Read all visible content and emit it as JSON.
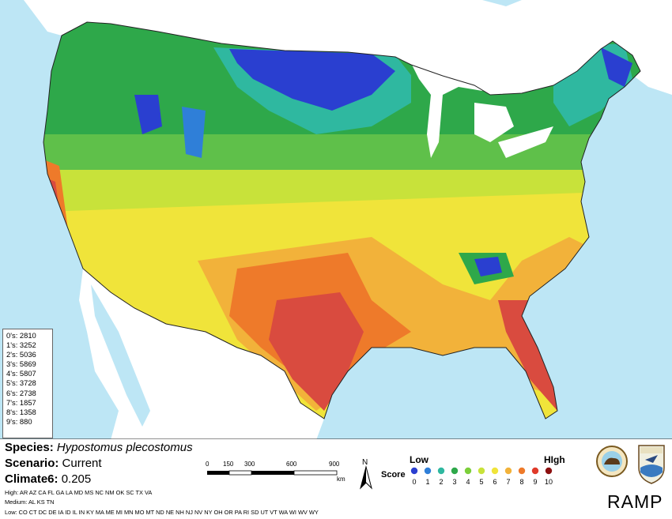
{
  "counts": [
    "0's: 2810",
    "1's: 3252",
    "2's: 5036",
    "3's: 5869",
    "4's: 5807",
    "5's: 3728",
    "6's: 2738",
    "7's: 1857",
    "8's: 1358",
    "9's: 880"
  ],
  "species": {
    "label": "Species:",
    "value": "Hypostomus plecostomus"
  },
  "scenario": {
    "label": "Scenario:",
    "value": "Current"
  },
  "climate": {
    "label": "Climate6:",
    "value": "0.205"
  },
  "high_states": "High:  AR AZ CA FL GA LA MD MS NC NM OK SC TX VA",
  "medium_states": "Medium:  AL KS TN",
  "low_states": "Low:  CO CT DC DE IA ID IL IN KY MA ME MI MN MO MT ND NE NH NJ NV NY OH OR PA RI SD UT VT WA WI WV WY",
  "scale_bar": {
    "ticks": [
      "0",
      "150",
      "300",
      "600",
      "900"
    ],
    "unit": "km"
  },
  "north_label": "N",
  "legend": {
    "score_label": "Score",
    "low_label": "Low",
    "high_label": "HIgh",
    "values": [
      "0",
      "1",
      "2",
      "3",
      "4",
      "5",
      "6",
      "7",
      "8",
      "9",
      "10"
    ],
    "colors": [
      "#2a3fd0",
      "#2f7fd8",
      "#2fb8a0",
      "#2ea84a",
      "#7ccf3a",
      "#c8e23a",
      "#f0e43a",
      "#f2b23a",
      "#ee7a2a",
      "#e03a2a",
      "#8c1010"
    ]
  },
  "brand": "RAMP",
  "colors": {
    "water": "#bde6f5",
    "land_outside": "#ffffff",
    "map_border": "#222222"
  }
}
